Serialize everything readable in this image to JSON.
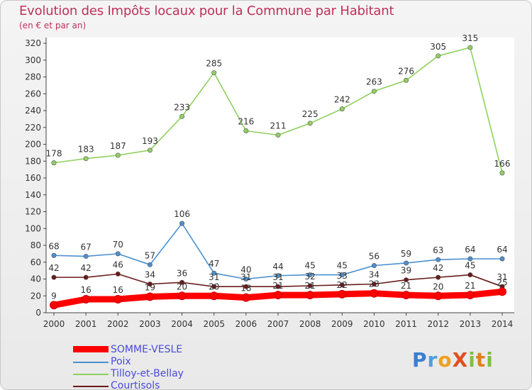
{
  "header": {
    "title": "Evolution des Impôts locaux pour la Commune par Habitant",
    "subtitle": "(en € et par an)"
  },
  "logo": {
    "text": "ProXiti",
    "letters": [
      "P",
      "r",
      "o",
      "X",
      "i",
      "t",
      "i"
    ],
    "colors": [
      "#3a7fd0",
      "#4aa0e0",
      "#f0a020",
      "#e05020",
      "#80c040",
      "#e08020",
      "#80c040"
    ]
  },
  "chart_data": {
    "type": "line",
    "title": "Evolution des Impôts locaux pour la Commune par Habitant",
    "ylabel": "(en € et par an)",
    "xlabel": "",
    "ylim": [
      0,
      320
    ],
    "yticks": [
      0,
      20,
      40,
      60,
      80,
      100,
      120,
      140,
      160,
      180,
      200,
      220,
      240,
      260,
      280,
      300,
      320
    ],
    "grid": false,
    "legend": "bottom-left",
    "x": [
      "2000",
      "2001",
      "2002",
      "2003",
      "2004",
      "2005",
      "2006",
      "2007",
      "2008",
      "2009",
      "2010",
      "2011",
      "2012",
      "2013",
      "2014"
    ],
    "series": [
      {
        "name": "SOMME-VESLE",
        "color": "#ff0000",
        "values": [
          9,
          16,
          16,
          19,
          20,
          20,
          18,
          21,
          21,
          22,
          23,
          21,
          20,
          21,
          25
        ],
        "labels": [
          "9",
          "16",
          "16",
          "19",
          "20",
          "20",
          "18",
          "21",
          "21",
          "22",
          "23",
          "21",
          "20",
          "21",
          "25"
        ]
      },
      {
        "name": "Poix",
        "color": "#4a90d0",
        "values": [
          68,
          67,
          70,
          57,
          106,
          47,
          40,
          44,
          45,
          45,
          56,
          59,
          63,
          64,
          64
        ],
        "labels": [
          "68",
          "67",
          "70",
          "57",
          "106",
          "47",
          "40",
          "44",
          "45",
          "45",
          "56",
          "59",
          "63",
          "64",
          "64"
        ]
      },
      {
        "name": "Tilloy-et-Bellay",
        "color": "#90d060",
        "values": [
          178,
          183,
          187,
          193,
          233,
          285,
          216,
          211,
          225,
          242,
          263,
          276,
          305,
          315,
          166
        ],
        "labels": [
          "178",
          "183",
          "187",
          "193",
          "233",
          "285",
          "216",
          "211",
          "225",
          "242",
          "263",
          "276",
          "305",
          "315",
          "166"
        ]
      },
      {
        "name": "Courtisols",
        "color": "#6a1a1a",
        "values": [
          42,
          42,
          46,
          34,
          36,
          31,
          31,
          31,
          32,
          33,
          34,
          39,
          42,
          45,
          31
        ],
        "labels": [
          "42",
          "42",
          "46",
          "34",
          "36",
          "31",
          "31",
          "31",
          "32",
          "33",
          "34",
          "39",
          "42",
          "45",
          "31"
        ]
      }
    ]
  }
}
